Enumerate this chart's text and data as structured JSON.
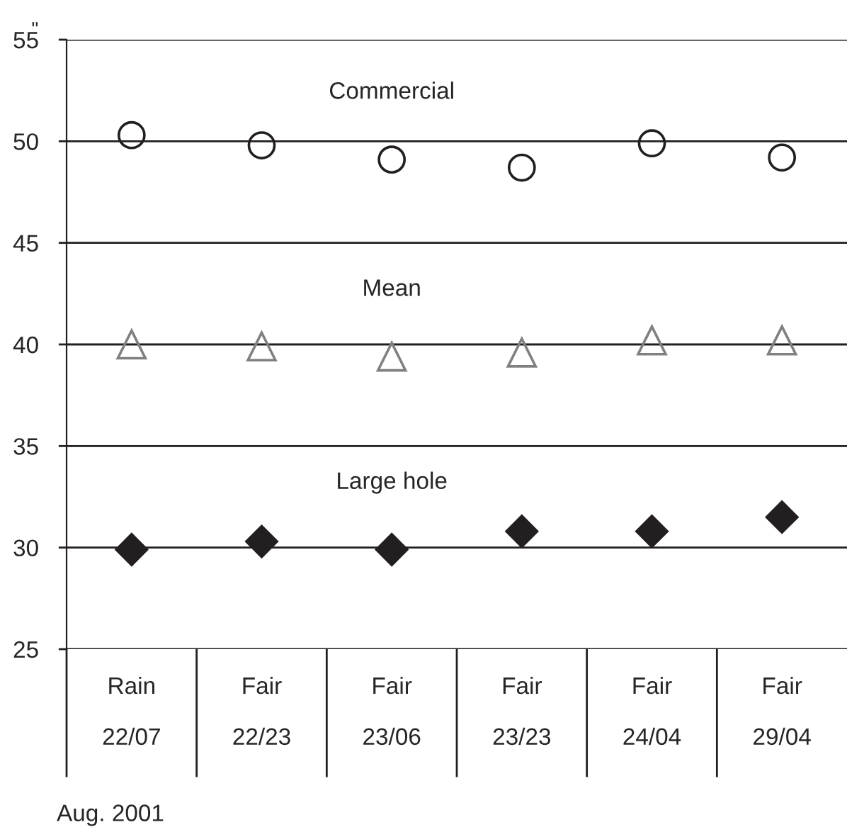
{
  "chart_data": {
    "type": "scatter",
    "categories": [
      "Rain\n\n22/07",
      "Fair\n\n22/23",
      "Fair\n\n23/06",
      "Fair\n\n23/23",
      "Fair\n\n24/04",
      "Fair\n\n29/04"
    ],
    "series": [
      {
        "name": "Commercial",
        "color": "#231f20",
        "marker": "circle",
        "values": [
          50.3,
          49.8,
          49.1,
          48.7,
          49.9,
          49.2
        ]
      },
      {
        "name": "Mean",
        "color": "#808080",
        "marker": "triangle",
        "values": [
          40.0,
          39.9,
          39.4,
          39.6,
          40.2,
          40.2
        ]
      },
      {
        "name": "Large hole",
        "color": "#231f20",
        "marker": "diamond",
        "values": [
          29.9,
          30.3,
          29.9,
          30.8,
          30.8,
          31.5
        ]
      }
    ],
    "ylabel": "\"",
    "ylim": [
      25,
      55
    ],
    "yticks": [
      25,
      30,
      35,
      40,
      45,
      50,
      55
    ],
    "grid": "y",
    "legend": false,
    "annotations": [
      "Aug. 2001"
    ]
  }
}
